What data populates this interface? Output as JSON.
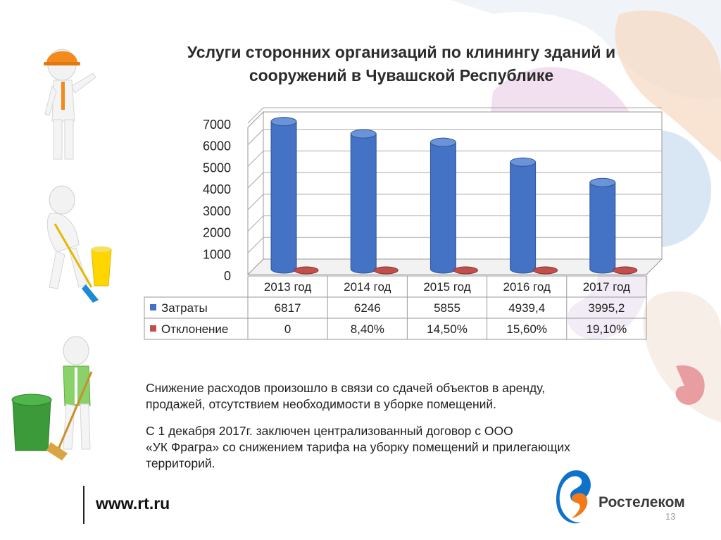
{
  "slide": {
    "title_line1": "Услуги сторонних организаций по клинингу зданий и",
    "title_line2": "сооружений в  Чувашской Республике",
    "paragraph1_line1": "Снижение расходов  произошло в связи со сдачей объектов в аренду,",
    "paragraph1_line2": "продажей, отсутствием необходимости в уборке помещений.",
    "paragraph2_line1": "С 1 декабря 2017г. заключен централизованный договор с ООО",
    "paragraph2_line2": "«УК  Фрагра»  со снижением тарифа на уборку  помещений и прилегающих",
    "paragraph2_line3": "территорий.",
    "footer_url": "www.rt.ru",
    "brand_name": "Ростелеком",
    "page_number": "13",
    "icons": [
      "worker-helmet-figure-icon",
      "mopping-figure-icon",
      "trash-bin-figure-icon",
      "rostelecom-logo-icon"
    ]
  },
  "chart_data": {
    "type": "bar",
    "categories": [
      "2013 год",
      "2014 год",
      "2015 год",
      "2016 год",
      "2017 год"
    ],
    "series": [
      {
        "name": "Затраты",
        "values": [
          6817,
          6246,
          5855,
          4939.4,
          3995.2
        ],
        "labels": [
          "6817",
          "6246",
          "5855",
          "4939,4",
          "3995,2"
        ],
        "color": "#4472c4"
      },
      {
        "name": "Отклонение",
        "values": [
          0,
          8.4,
          14.5,
          15.6,
          19.1
        ],
        "labels": [
          "0",
          "8,40%",
          "14,50%",
          "15,60%",
          "19,10%"
        ],
        "color": "#c0504d"
      }
    ],
    "yticks": [
      "0",
      "1000",
      "2000",
      "3000",
      "4000",
      "5000",
      "6000",
      "7000"
    ],
    "ylim": [
      0,
      7000
    ],
    "grid": true,
    "legend": "data-table",
    "style": "3d-cylinder"
  }
}
